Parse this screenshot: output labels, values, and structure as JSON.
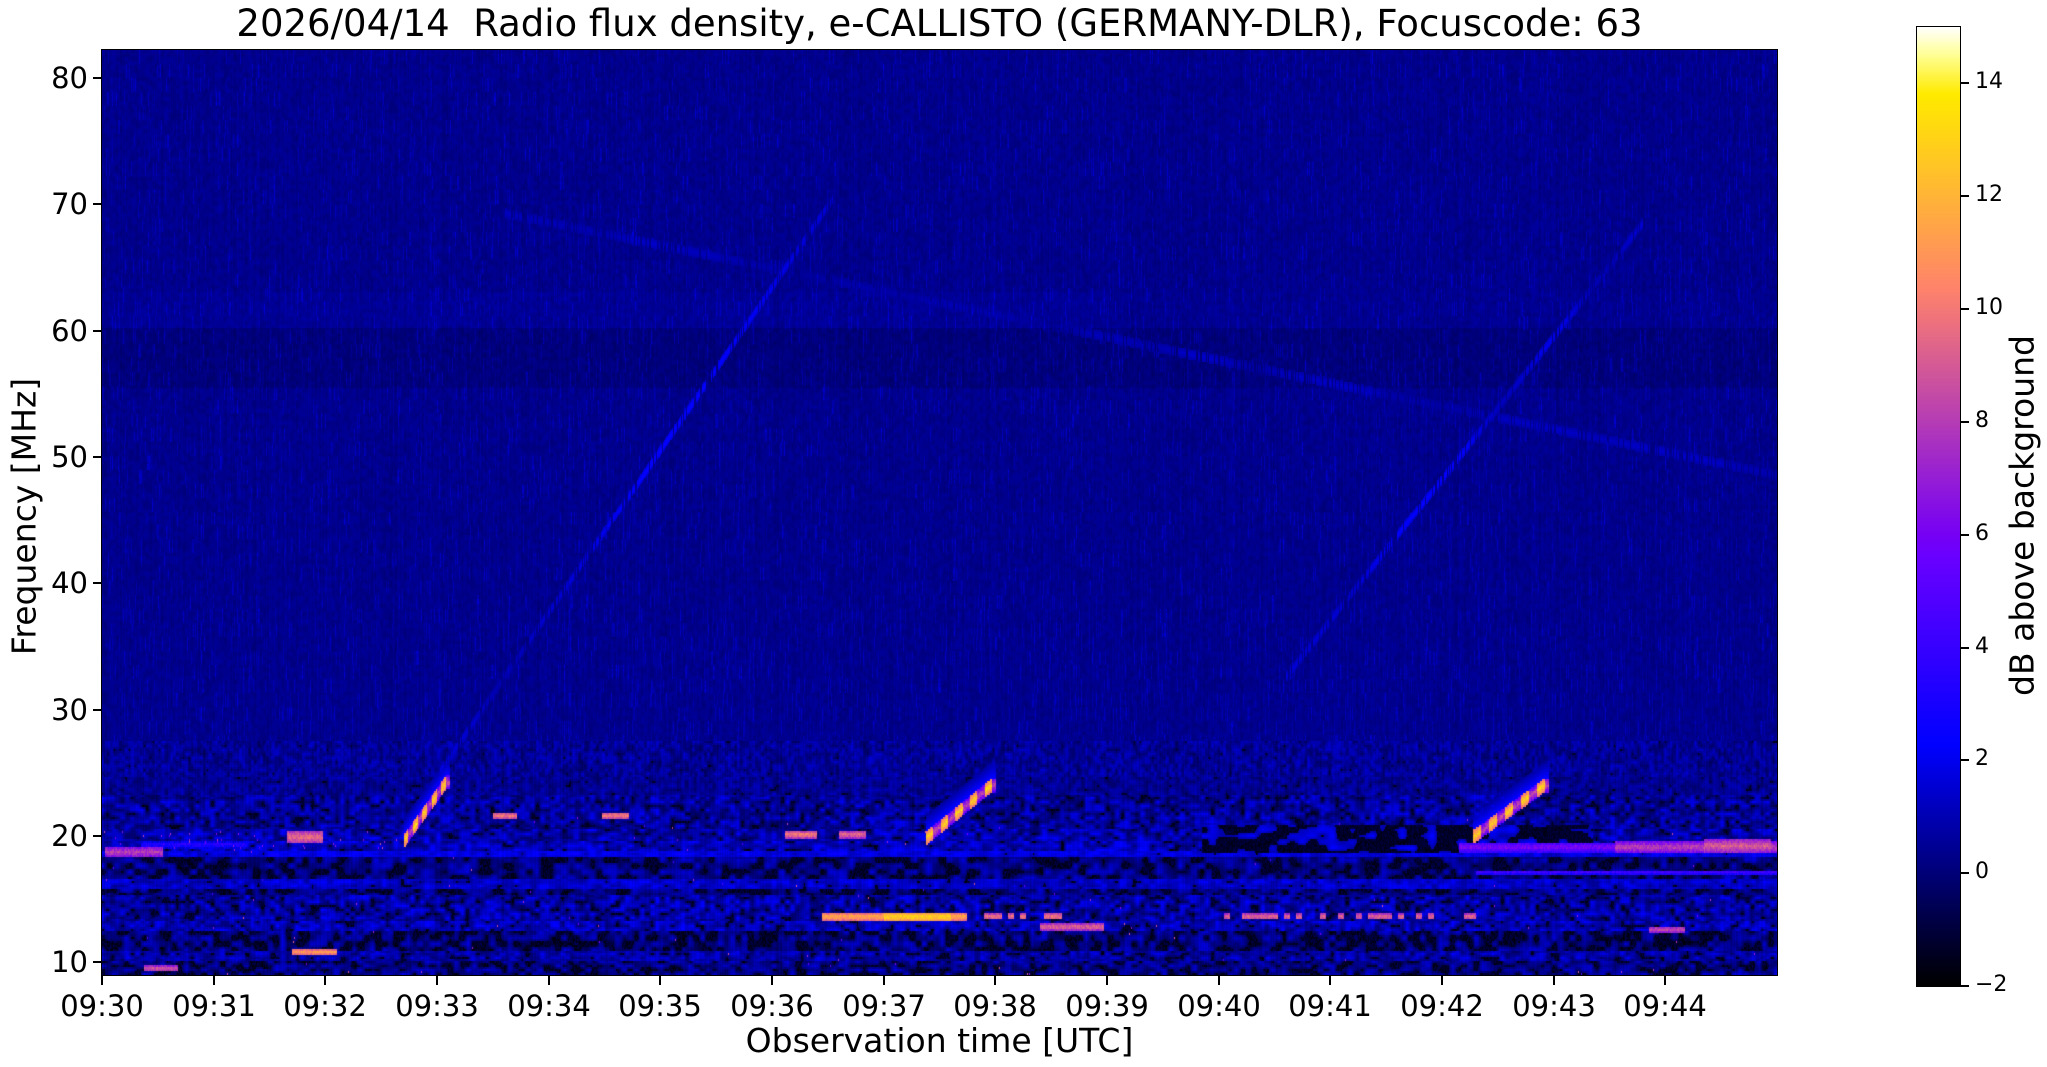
{
  "title": "2026/04/14  Radio flux density, e-CALLISTO (GERMANY-DLR), Focuscode: 63",
  "axes": {
    "x_label": "Observation time [UTC]",
    "y_label": "Frequency [MHz]"
  },
  "chart_data": {
    "type": "heatmap",
    "subtype": "radio-spectrogram",
    "title": "2026/04/14  Radio flux density, e-CALLISTO (GERMANY-DLR), Focuscode: 63",
    "xlabel": "Observation time [UTC]",
    "ylabel": "Frequency [MHz]",
    "x_start_utc": "09:30",
    "x_end_utc": "09:45",
    "x_span_minutes": 15,
    "x_tick_labels": [
      "09:30",
      "09:31",
      "09:32",
      "09:33",
      "09:34",
      "09:35",
      "09:36",
      "09:37",
      "09:38",
      "09:39",
      "09:40",
      "09:41",
      "09:42",
      "09:43",
      "09:44"
    ],
    "y_tick_values": [
      80,
      70,
      60,
      50,
      40,
      30,
      20,
      10
    ],
    "y_range_mhz": [
      9.0,
      82.2
    ],
    "value_range_db": [
      -2,
      15
    ],
    "colormap": "gnuplot2 (black-blue-violet-pink-orange-yellow-white)",
    "colorbar_label": "dB above background",
    "colorbar_ticks": [
      {
        "value": 14,
        "label": "14"
      },
      {
        "value": 12,
        "label": "12"
      },
      {
        "value": 10,
        "label": "10"
      },
      {
        "value": 8,
        "label": "8"
      },
      {
        "value": 6,
        "label": "6"
      },
      {
        "value": 4,
        "label": "4"
      },
      {
        "value": 2,
        "label": "2"
      },
      {
        "value": 0,
        "label": "0"
      },
      {
        "value": -2,
        "label": "−2"
      }
    ],
    "background_db": 0.32,
    "upper_quiet_above_mhz": 27.5,
    "dark_band_mhz": [
      55.5,
      60.2
    ],
    "bright_band_mhz": [
      60.3,
      63.0
    ],
    "rfi_bands": [
      {
        "f": [
          24.6,
          27.5
        ],
        "base": 0.5,
        "v": 0.85,
        "black": 0.02,
        "cw": 3,
        "ch": 2
      },
      {
        "f": [
          23.3,
          24.6
        ],
        "base": 0.45,
        "v": 0.7,
        "black": 0.06,
        "cw": 4,
        "ch": 2
      },
      {
        "f": [
          20.5,
          23.3
        ],
        "base": 0.7,
        "v": 1.25,
        "black": 0.16,
        "cw": 5,
        "ch": 2
      },
      {
        "f": [
          19.6,
          20.5
        ],
        "base": 0.9,
        "v": 1.3,
        "black": 0.13,
        "cw": 6,
        "ch": 2
      },
      {
        "f": [
          18.85,
          19.6
        ],
        "base": 1.15,
        "v": 1.2,
        "black": 0.1,
        "cw": 6,
        "ch": 2
      },
      {
        "f": [
          18.35,
          18.85
        ],
        "base": 1.8,
        "v": 0.8,
        "black": 0.04,
        "cw": 7,
        "ch": 2
      },
      {
        "f": [
          16.65,
          18.35
        ],
        "base": 0.55,
        "v": 1.05,
        "black": 0.37,
        "cw": 7,
        "ch": 3
      },
      {
        "f": [
          15.85,
          16.65
        ],
        "base": 1.35,
        "v": 0.9,
        "black": 0.1,
        "cw": 6,
        "ch": 2
      },
      {
        "f": [
          15.35,
          15.85
        ],
        "base": 0.5,
        "v": 1.0,
        "black": 0.34,
        "cw": 7,
        "ch": 3
      },
      {
        "f": [
          13.3,
          15.35
        ],
        "base": 0.9,
        "v": 1.3,
        "black": 0.2,
        "cw": 5,
        "ch": 2
      },
      {
        "f": [
          12.5,
          13.3
        ],
        "base": 1.1,
        "v": 1.15,
        "black": 0.15,
        "cw": 5,
        "ch": 2
      },
      {
        "f": [
          10.9,
          12.5
        ],
        "base": 0.5,
        "v": 1.05,
        "black": 0.4,
        "cw": 6,
        "ch": 3
      },
      {
        "f": [
          10.15,
          10.9
        ],
        "base": 0.9,
        "v": 1.1,
        "black": 0.2,
        "cw": 5,
        "ch": 2
      },
      {
        "f": [
          9.0,
          10.15
        ],
        "base": 0.55,
        "v": 1.0,
        "black": 0.32,
        "cw": 6,
        "ch": 2
      }
    ],
    "black_region": {
      "t": [
        9.85,
        13.35
      ],
      "f": [
        18.6,
        20.8
      ]
    },
    "sweeps": [
      {
        "t": [
          2.7,
          3.08
        ],
        "f": [
          19.5,
          24.2
        ],
        "db": 14
      },
      {
        "t": [
          7.38,
          7.97
        ],
        "f": [
          19.8,
          24.0
        ],
        "db": 14
      },
      {
        "t": [
          12.28,
          12.92
        ],
        "f": [
          19.9,
          24.0
        ],
        "db": 14
      }
    ],
    "faint_diagonals": [
      {
        "t": [
          3.02,
          6.55
        ],
        "f": [
          25.0,
          70.5
        ],
        "db": 1.9
      },
      {
        "t": [
          3.6,
          15.0
        ],
        "f": [
          69.3,
          48.6
        ],
        "db": 1.1
      },
      {
        "t": [
          10.6,
          13.8
        ],
        "f": [
          32.5,
          68.5
        ],
        "db": 1.9
      }
    ],
    "bright_patches": [
      {
        "t": [
          0.03,
          0.55
        ],
        "f": 18.7,
        "h": 0.9,
        "db": 9.0
      },
      {
        "t": [
          0.35,
          1.3
        ],
        "f": 19.3,
        "h": 0.6,
        "db": 4.5
      },
      {
        "t": [
          1.66,
          1.98
        ],
        "f": 19.9,
        "h": 1.0,
        "db": 10.5
      },
      {
        "t": [
          1.7,
          2.1
        ],
        "f": 10.8,
        "h": 0.5,
        "db": 12.0
      },
      {
        "t": [
          0.38,
          0.68
        ],
        "f": 9.5,
        "h": 0.45,
        "db": 10.0
      },
      {
        "t": [
          3.5,
          3.72
        ],
        "f": 21.6,
        "h": 0.55,
        "db": 11.0
      },
      {
        "t": [
          4.48,
          4.72
        ],
        "f": 21.6,
        "h": 0.55,
        "db": 11.0
      },
      {
        "t": [
          6.12,
          6.4
        ],
        "f": 20.1,
        "h": 0.55,
        "db": 11.0
      },
      {
        "t": [
          6.6,
          6.84
        ],
        "f": 20.1,
        "h": 0.55,
        "db": 10.5
      },
      {
        "t": [
          6.45,
          7.75
        ],
        "f": 13.6,
        "h": 0.6,
        "db": 12.5
      },
      {
        "t": [
          7.0,
          7.6
        ],
        "f": 13.6,
        "h": 0.65,
        "db": 14.0
      },
      {
        "t": [
          7.78,
          8.72
        ],
        "f": 13.6,
        "h": 0.5,
        "db": 11.0,
        "dotted": true
      },
      {
        "t": [
          8.4,
          8.97
        ],
        "f": 12.8,
        "h": 0.5,
        "db": 10.5
      },
      {
        "t": [
          10.05,
          12.3
        ],
        "f": 13.6,
        "h": 0.5,
        "db": 10.5,
        "dotted": true
      },
      {
        "t": [
          12.15,
          15.0
        ],
        "f": 19.1,
        "h": 0.8,
        "db": 7.0
      },
      {
        "t": [
          13.55,
          15.0
        ],
        "f": 19.1,
        "h": 0.9,
        "db": 9.0
      },
      {
        "t": [
          14.35,
          14.95
        ],
        "f": 19.2,
        "h": 1.0,
        "db": 10.0
      },
      {
        "t": [
          12.3,
          15.0
        ],
        "f": 17.1,
        "h": 0.35,
        "db": 5.5
      },
      {
        "t": [
          13.85,
          14.18
        ],
        "f": 12.6,
        "h": 0.5,
        "db": 9.5
      }
    ],
    "seed": 7
  }
}
